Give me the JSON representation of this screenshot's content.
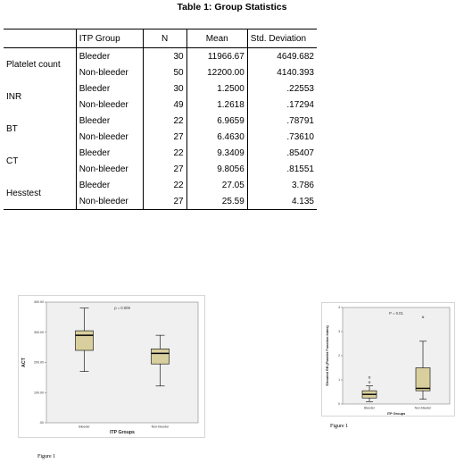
{
  "table": {
    "title": "Table 1: Group Statistics",
    "headers": [
      "",
      "ITP Group",
      "N",
      "Mean",
      "Std. Deviation"
    ],
    "rows": [
      {
        "variable": "Platelet count",
        "group": "Bleeder",
        "n": "30",
        "mean": "11966.67",
        "sd": "4649.682"
      },
      {
        "variable": "",
        "group": "Non-bleeder",
        "n": "50",
        "mean": "12200.00",
        "sd": "4140.393"
      },
      {
        "variable": "INR",
        "group": "Bleeder",
        "n": "30",
        "mean": "1.2500",
        "sd": ".22553"
      },
      {
        "variable": "",
        "group": "Non-bleeder",
        "n": "49",
        "mean": "1.2618",
        "sd": ".17294"
      },
      {
        "variable": "BT",
        "group": "Bleeder",
        "n": "22",
        "mean": "6.9659",
        "sd": ".78791"
      },
      {
        "variable": "",
        "group": "Non-bleeder",
        "n": "27",
        "mean": "6.4630",
        "sd": ".73610"
      },
      {
        "variable": "CT",
        "group": "Bleeder",
        "n": "22",
        "mean": "9.3409",
        "sd": ".85407"
      },
      {
        "variable": "",
        "group": "Non-bleeder",
        "n": "27",
        "mean": "9.8056",
        "sd": ".81551"
      },
      {
        "variable": "Hesstest",
        "group": "Bleeder",
        "n": "22",
        "mean": "27.05",
        "sd": "3.786"
      },
      {
        "variable": "",
        "group": "Non-bleeder",
        "n": "27",
        "mean": "25.59",
        "sd": "4.135"
      }
    ]
  },
  "figure_left": {
    "caption": "Figure 1"
  },
  "figure_right": {
    "caption": "Figure 1"
  },
  "chart_data": [
    {
      "type": "box",
      "annotation": "p = 0.009",
      "xlabel": "ITP Groups",
      "ylabel": "ACT",
      "categories": [
        "Bleeder",
        "Non-bleeder"
      ],
      "ylim": [
        0,
        400
      ],
      "ytick_labels": [
        ".00",
        "100.00",
        "200.00",
        "300.00",
        "400.00"
      ],
      "ytick_values": [
        0,
        100,
        200,
        300,
        400
      ],
      "boxes": [
        {
          "name": "Bleeder",
          "min": 170,
          "q1": 240,
          "median": 290,
          "q3": 305,
          "max": 380
        },
        {
          "name": "Non-bleeder",
          "min": 122,
          "q1": 195,
          "median": 230,
          "q3": 245,
          "max": 290
        }
      ],
      "colors": {
        "box_fill": "#d9cf9e",
        "plot_bg": "#f0f0f0"
      }
    },
    {
      "type": "box",
      "annotation": "P = 0.01",
      "xlabel": "ITP Groups",
      "ylabel": "Elevated RB (Platelet Function Index)",
      "categories": [
        "Bleeder",
        "Non-bleeder"
      ],
      "ylim": [
        0,
        4
      ],
      "ytick_labels": [
        "0",
        "1",
        "2",
        "3",
        "4"
      ],
      "ytick_values": [
        0,
        1,
        2,
        3,
        4
      ],
      "boxes": [
        {
          "name": "Bleeder",
          "min": 0.1,
          "q1": 0.25,
          "median": 0.4,
          "q3": 0.55,
          "max": 0.75,
          "outliers": [
            0.9,
            1.1
          ]
        },
        {
          "name": "Non-bleeder",
          "min": 0.2,
          "q1": 0.55,
          "median": 0.65,
          "q3": 1.5,
          "max": 2.6,
          "outliers": [
            3.6
          ]
        }
      ],
      "colors": {
        "box_fill": "#d9cf9e",
        "plot_bg": "#f0f0f0"
      }
    }
  ]
}
